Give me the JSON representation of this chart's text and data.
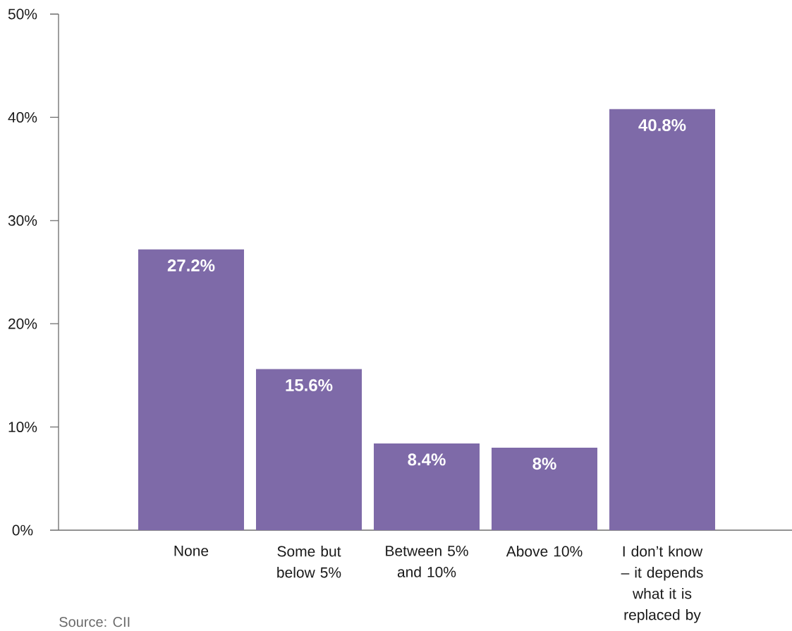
{
  "chart_data": {
    "type": "bar",
    "categories": [
      "None",
      "Some but below 5%",
      "Between 5% and 10%",
      "Above 10%",
      "I don’t know – it depends what it is replaced by"
    ],
    "values": [
      27.2,
      15.6,
      8.4,
      8,
      40.8
    ],
    "value_labels": [
      "27.2%",
      "15.6%",
      "8.4%",
      "8%",
      "40.8%"
    ],
    "color": "#7e6aa8",
    "ylim": [
      0,
      50
    ],
    "yticks": [
      {
        "value": 0,
        "label": "0%"
      },
      {
        "value": 10,
        "label": "10%"
      },
      {
        "value": 20,
        "label": "20%"
      },
      {
        "value": 30,
        "label": "30%"
      },
      {
        "value": 40,
        "label": "40%"
      },
      {
        "value": 50,
        "label": "50%"
      }
    ],
    "annotations": [
      "Source: CII"
    ]
  }
}
